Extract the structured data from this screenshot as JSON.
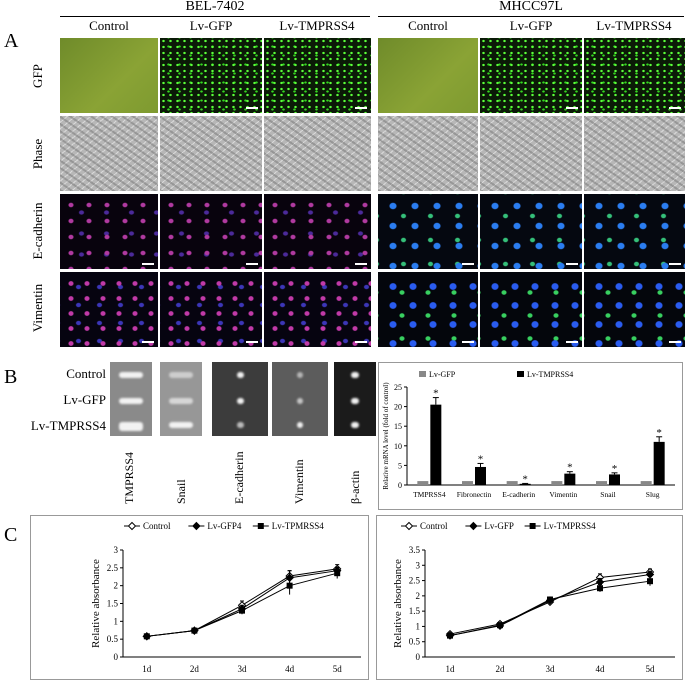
{
  "panel_a": {
    "letter": "A",
    "groups": [
      {
        "title": "BEL-7402",
        "columns": [
          "Control",
          "Lv-GFP",
          "Lv-TMPRSS4"
        ]
      },
      {
        "title": "MHCC97L",
        "columns": [
          "Control",
          "Lv-GFP",
          "Lv-TMPRSS4"
        ]
      }
    ],
    "rows": [
      "GFP",
      "Phase",
      "E-cadherin",
      "Vimentin"
    ]
  },
  "panel_b": {
    "letter": "B",
    "blot_rows": [
      "Control",
      "Lv-GFP",
      "Lv-TMPRSS4"
    ],
    "blot_genes": [
      "TMPRSS4",
      "Snail",
      "E-cadherin",
      "Vimentin",
      "β-actin"
    ]
  },
  "panel_c": {
    "letter": "C"
  },
  "chart_data": [
    {
      "type": "bar",
      "ylabel": "Relative mRNA level (fold of control)",
      "categories": [
        "TMPRSS4",
        "Fibronectin",
        "E-cadherin",
        "Vimentin",
        "Snail",
        "Slug"
      ],
      "ylim": [
        0,
        25
      ],
      "yticks": [
        0,
        5,
        10,
        15,
        20,
        25
      ],
      "legend": "top",
      "series": [
        {
          "name": "Lv-GFP",
          "color": "#888888",
          "values": [
            1,
            1,
            1,
            1,
            1,
            1
          ]
        },
        {
          "name": "Lv-TMPRSS4",
          "color": "#000000",
          "values": [
            20.5,
            4.6,
            0.3,
            2.9,
            2.7,
            11.0
          ],
          "errors": [
            1.8,
            0.9,
            0.1,
            0.5,
            0.4,
            1.3
          ]
        }
      ],
      "annotations": [
        "*",
        "*",
        "*",
        "*",
        "*",
        "*"
      ]
    },
    {
      "type": "line",
      "ylabel": "Relative absorbance",
      "x": [
        "1d",
        "2d",
        "3d",
        "4d",
        "5d"
      ],
      "ylim": [
        0,
        3
      ],
      "yticks": [
        "0",
        "0.5",
        "1",
        "1.5",
        "2",
        "2.5",
        "3"
      ],
      "legend": "top",
      "series": [
        {
          "name": "Control",
          "marker": "open-diamond",
          "values": [
            0.58,
            0.74,
            1.45,
            2.27,
            2.47
          ],
          "errors": [
            0.04,
            0.04,
            0.12,
            0.15,
            0.12
          ]
        },
        {
          "name": "Lv-GFP4",
          "marker": "filled-diamond",
          "values": [
            0.58,
            0.74,
            1.35,
            2.22,
            2.42
          ],
          "errors": [
            0.04,
            0.04,
            0.1,
            0.2,
            0.1
          ]
        },
        {
          "name": "Lv-TPMRSS4",
          "marker": "filled-square",
          "values": [
            0.58,
            0.74,
            1.3,
            2.0,
            2.35
          ],
          "errors": [
            0.04,
            0.04,
            0.1,
            0.25,
            0.15
          ]
        }
      ]
    },
    {
      "type": "line",
      "ylabel": "Relative absorbance",
      "x": [
        "1d",
        "2d",
        "3d",
        "4d",
        "5d"
      ],
      "ylim": [
        0,
        3.5
      ],
      "yticks": [
        "0",
        "0.5",
        "1",
        "1.5",
        "2",
        "2.5",
        "3",
        "3.5"
      ],
      "legend": "top",
      "series": [
        {
          "name": "Control",
          "marker": "open-diamond",
          "values": [
            0.75,
            1.08,
            1.8,
            2.6,
            2.78
          ],
          "errors": [
            0.06,
            0.07,
            0.08,
            0.12,
            0.1
          ]
        },
        {
          "name": "Lv-GFP",
          "marker": "filled-diamond",
          "values": [
            0.7,
            1.02,
            1.85,
            2.45,
            2.7
          ],
          "errors": [
            0.05,
            0.06,
            0.08,
            0.12,
            0.1
          ]
        },
        {
          "name": "Lv-TMPRSS4",
          "marker": "filled-square",
          "values": [
            0.7,
            1.04,
            1.88,
            2.25,
            2.48
          ],
          "errors": [
            0.05,
            0.06,
            0.08,
            0.12,
            0.15
          ]
        }
      ]
    }
  ]
}
